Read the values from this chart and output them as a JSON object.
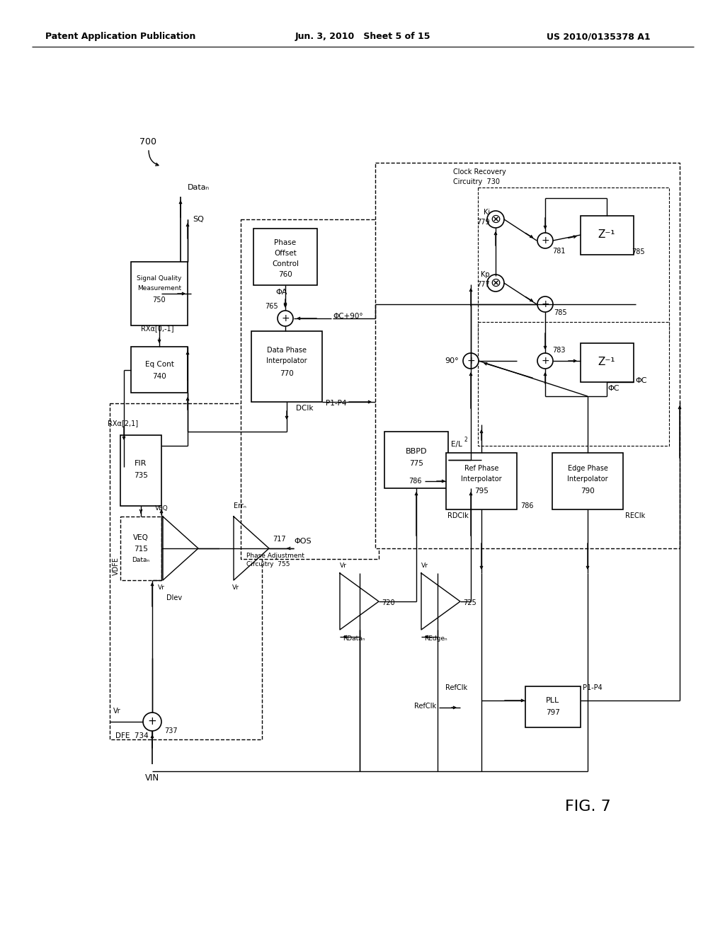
{
  "header_left": "Patent Application Publication",
  "header_center": "Jun. 3, 2010   Sheet 5 of 15",
  "header_right": "US 2010/0135378 A1",
  "fig_label": "FIG. 7",
  "bg": "#ffffff"
}
